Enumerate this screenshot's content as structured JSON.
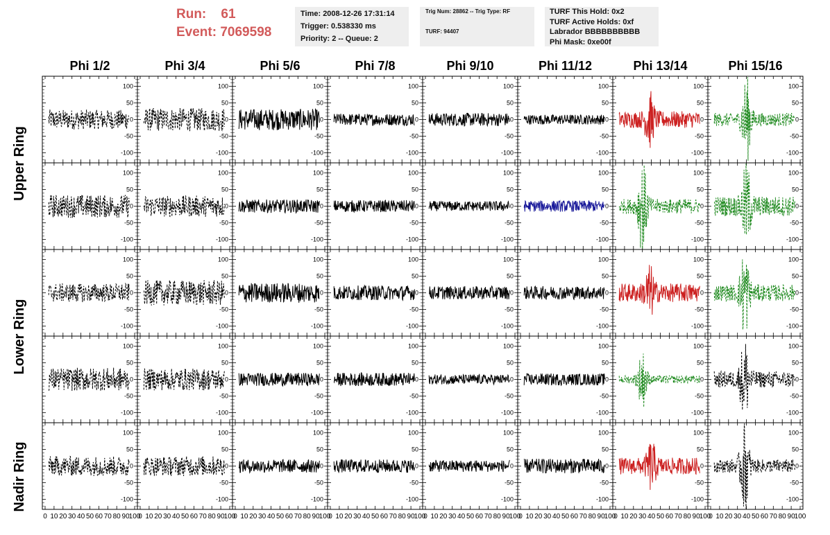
{
  "run_info": {
    "run_label": "Run:",
    "run_value": "61",
    "event_label": "Event:",
    "event_value": "7069598",
    "color": "#d25a5a"
  },
  "header_boxes": {
    "time": {
      "line1": "Time: 2008-12-26 17:31:14",
      "line2": "Trigger: 0.538330 ms",
      "line3": "Priority: 2 -- Queue: 2"
    },
    "trig": {
      "line1": "Trig Num: 28862 -- Trig Type: RF",
      "line2": "TURF: 94407"
    },
    "turf": {
      "line1": "TURF This Hold: 0x2",
      "line2": "TURF Active Holds: 0xf",
      "line3": "Labrador BBBBBBBBBB",
      "line4": "Phi Mask: 0xe00f"
    }
  },
  "phi_labels": [
    "Phi 1/2",
    "Phi 3/4",
    "Phi 5/6",
    "Phi 7/8",
    "Phi 9/10",
    "Phi 11/12",
    "Phi 13/14",
    "Phi 15/16"
  ],
  "ring_labels": [
    "Upper Ring",
    "Lower Ring",
    "Nadir Ring"
  ],
  "chart_data": {
    "type": "line",
    "grid": false,
    "x_ticks": [
      0,
      10,
      20,
      30,
      40,
      50,
      60,
      70,
      80,
      90,
      100
    ],
    "x_tick_labels": [
      "0",
      "10",
      "20",
      "30",
      "40",
      "50",
      "60",
      "70",
      "80",
      "90",
      "100"
    ],
    "xlim": [
      0,
      100
    ],
    "ylim": [
      -130,
      130
    ],
    "y_ticks": [
      100,
      50,
      0,
      -50,
      -100
    ],
    "y_tick_labels": [
      "100",
      "50",
      "0",
      "-50",
      "-100"
    ],
    "colors": {
      "black": "#000000",
      "red": "#cc2020",
      "blue": "#1a1a9a",
      "green": "#1f8a1f"
    },
    "panels": [
      [
        {
          "style": "dash",
          "color": "black",
          "amp": 30
        },
        {
          "style": "dash",
          "color": "black",
          "amp": 35
        },
        {
          "style": "solid",
          "color": "black",
          "amp": 32
        },
        {
          "style": "solid",
          "color": "black",
          "amp": 18
        },
        {
          "style": "solid",
          "color": "black",
          "amp": 20
        },
        {
          "style": "solid",
          "color": "black",
          "amp": 15
        },
        {
          "style": "solid",
          "color": "red",
          "amp": 25,
          "burst": [
            38,
            70
          ]
        },
        {
          "style": "dash",
          "color": "green",
          "amp": 20,
          "burst": [
            40,
            120
          ]
        }
      ],
      [
        {
          "style": "dash",
          "color": "black",
          "amp": 35
        },
        {
          "style": "dash",
          "color": "black",
          "amp": 32
        },
        {
          "style": "solid",
          "color": "black",
          "amp": 20
        },
        {
          "style": "solid",
          "color": "black",
          "amp": 18
        },
        {
          "style": "solid",
          "color": "black",
          "amp": 15
        },
        {
          "style": "solid",
          "color": "blue",
          "amp": 17
        },
        {
          "style": "dash",
          "color": "green",
          "amp": 22,
          "burst": [
            30,
            125
          ]
        },
        {
          "style": "dash",
          "color": "green",
          "amp": 30,
          "burst": [
            40,
            110
          ]
        }
      ],
      [
        {
          "style": "dash",
          "color": "black",
          "amp": 28
        },
        {
          "style": "dash",
          "color": "black",
          "amp": 38
        },
        {
          "style": "solid",
          "color": "black",
          "amp": 30
        },
        {
          "style": "solid",
          "color": "black",
          "amp": 22
        },
        {
          "style": "solid",
          "color": "black",
          "amp": 20
        },
        {
          "style": "solid",
          "color": "black",
          "amp": 20
        },
        {
          "style": "solid",
          "color": "red",
          "amp": 28,
          "burst": [
            38,
            65
          ]
        },
        {
          "style": "dash",
          "color": "green",
          "amp": 25,
          "burst": [
            38,
            120
          ]
        }
      ],
      [
        {
          "style": "dash",
          "color": "black",
          "amp": 35
        },
        {
          "style": "dash",
          "color": "black",
          "amp": 33
        },
        {
          "style": "solid",
          "color": "black",
          "amp": 20
        },
        {
          "style": "solid",
          "color": "black",
          "amp": 20
        },
        {
          "style": "solid",
          "color": "black",
          "amp": 15
        },
        {
          "style": "solid",
          "color": "black",
          "amp": 18
        },
        {
          "style": "dash",
          "color": "green",
          "amp": 12,
          "burst": [
            30,
            80
          ]
        },
        {
          "style": "dash",
          "color": "black",
          "amp": 25,
          "burst": [
            38,
            110
          ]
        }
      ],
      [
        {
          "style": "dash",
          "color": "black",
          "amp": 30
        },
        {
          "style": "dash",
          "color": "black",
          "amp": 30
        },
        {
          "style": "solid",
          "color": "black",
          "amp": 20
        },
        {
          "style": "solid",
          "color": "black",
          "amp": 20
        },
        {
          "style": "solid",
          "color": "black",
          "amp": 18
        },
        {
          "style": "solid",
          "color": "black",
          "amp": 22
        },
        {
          "style": "solid",
          "color": "red",
          "amp": 25,
          "burst": [
            40,
            60
          ]
        },
        {
          "style": "dash",
          "color": "black",
          "amp": 20,
          "burst": [
            38,
            125
          ]
        }
      ]
    ]
  }
}
